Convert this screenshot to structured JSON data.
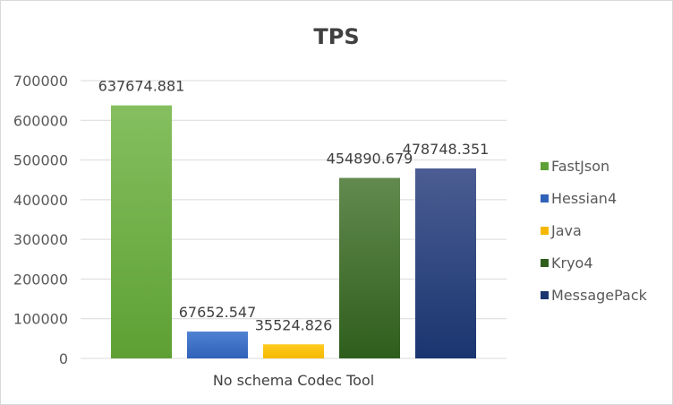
{
  "chart_data": {
    "type": "bar",
    "title": "TPS",
    "categories": [
      "No schema Codec Tool"
    ],
    "series": [
      {
        "name": "FastJson",
        "values": [
          637674.881
        ],
        "label": "637674.881",
        "color_top": "#85bf5f",
        "color_bottom": "#5ea034"
      },
      {
        "name": "Hessian4",
        "values": [
          67652.547
        ],
        "label": "67652.547",
        "color_top": "#4f82d2",
        "color_bottom": "#2f62b9"
      },
      {
        "name": "Java",
        "values": [
          35524.826
        ],
        "label": "35524.826",
        "color_top": "#ffcc22",
        "color_bottom": "#f5b800"
      },
      {
        "name": "Kryo4",
        "values": [
          454890.679
        ],
        "label": "454890.679",
        "color_top": "#628a4f",
        "color_bottom": "#2f5e1c"
      },
      {
        "name": "MessagePack",
        "values": [
          478748.351
        ],
        "label": "478748.351",
        "color_top": "#4b5d92",
        "color_bottom": "#1a3570"
      }
    ],
    "y_ticks": [
      "0",
      "100000",
      "200000",
      "300000",
      "400000",
      "500000",
      "600000",
      "700000"
    ],
    "ylim": [
      0,
      700000
    ],
    "grid": true,
    "legend_position": "right"
  }
}
